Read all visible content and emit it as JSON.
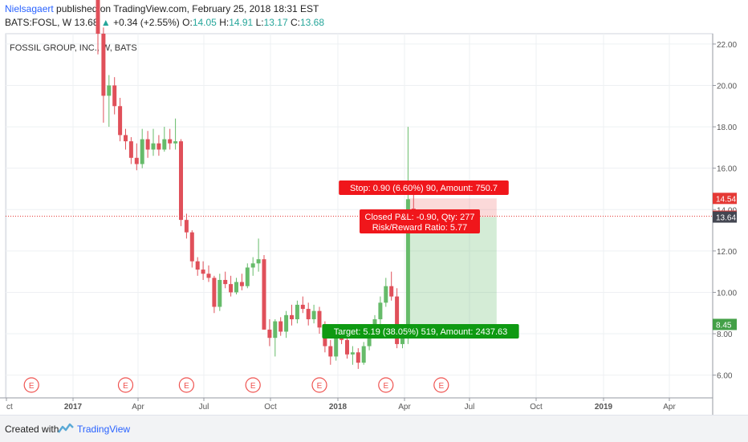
{
  "header": {
    "user": "Nielsagaert",
    "published": "published on TradingView.com, February 25, 2018 18:31 EST",
    "symbol": "BATS:FOSL, W",
    "last": "13.68",
    "change": "+0.34 (+2.55%)",
    "o_label": "O:",
    "o": "14.05",
    "h_label": "H:",
    "h": "14.91",
    "l_label": "L:",
    "l": "13.17",
    "c_label": "C:",
    "c": "13.68"
  },
  "footer": {
    "created": "Created with",
    "brand": "TradingView"
  },
  "chart_data": {
    "type": "candlestick",
    "title": "FOSSIL GROUP, INC., W, BATS",
    "ylim": [
      4.9,
      22.5
    ],
    "y_ticks": [
      "22.00",
      "20.00",
      "18.00",
      "16.00",
      "14.00",
      "12.00",
      "10.00",
      "8.00",
      "6.00"
    ],
    "y_tick_values": [
      22,
      20,
      18,
      16,
      14,
      12,
      10,
      8,
      6
    ],
    "x_ticks": [
      "ct",
      "2017",
      "Apr",
      "Jul",
      "Oct",
      "2018",
      "Apr",
      "Jul",
      "Oct",
      "2019",
      "Apr"
    ],
    "price_tags": [
      {
        "label": "14.54",
        "value": 14.54,
        "color": "#e53935"
      },
      {
        "label": "13.68",
        "value": 13.68,
        "color": "#e53935"
      },
      {
        "label": "13.64",
        "value": 13.64,
        "color": "#434651"
      },
      {
        "label": "8.45",
        "value": 8.45,
        "color": "#43a047"
      }
    ],
    "current_price": 13.68,
    "earnings_marker": "E",
    "earnings_weeks": [
      0,
      17,
      28,
      40,
      52,
      64,
      74
    ],
    "candles": [
      {
        "o": 26.5,
        "h": 27.5,
        "l": 21.5,
        "c": 22.5
      },
      {
        "o": 22.5,
        "h": 22.8,
        "l": 18.2,
        "c": 19.5
      },
      {
        "o": 19.5,
        "h": 20.5,
        "l": 18.0,
        "c": 20.0
      },
      {
        "o": 20.0,
        "h": 20.4,
        "l": 18.6,
        "c": 19.0
      },
      {
        "o": 19.0,
        "h": 19.4,
        "l": 17.3,
        "c": 17.6
      },
      {
        "o": 17.6,
        "h": 17.9,
        "l": 16.9,
        "c": 17.3
      },
      {
        "o": 17.3,
        "h": 17.5,
        "l": 16.2,
        "c": 16.5
      },
      {
        "o": 16.5,
        "h": 17.2,
        "l": 15.9,
        "c": 16.2
      },
      {
        "o": 16.2,
        "h": 17.9,
        "l": 16.0,
        "c": 17.4
      },
      {
        "o": 17.4,
        "h": 17.8,
        "l": 16.5,
        "c": 16.9
      },
      {
        "o": 16.9,
        "h": 17.9,
        "l": 16.6,
        "c": 17.2
      },
      {
        "o": 17.2,
        "h": 17.6,
        "l": 16.6,
        "c": 16.9
      },
      {
        "o": 16.9,
        "h": 18.0,
        "l": 16.8,
        "c": 17.4
      },
      {
        "o": 17.4,
        "h": 17.9,
        "l": 16.9,
        "c": 17.2
      },
      {
        "o": 17.2,
        "h": 18.4,
        "l": 16.9,
        "c": 17.3
      },
      {
        "o": 17.3,
        "h": 17.4,
        "l": 13.2,
        "c": 13.5
      },
      {
        "o": 13.5,
        "h": 13.8,
        "l": 12.6,
        "c": 12.9
      },
      {
        "o": 12.9,
        "h": 13.0,
        "l": 11.2,
        "c": 11.5
      },
      {
        "o": 11.5,
        "h": 11.7,
        "l": 10.8,
        "c": 11.1
      },
      {
        "o": 11.1,
        "h": 11.5,
        "l": 10.6,
        "c": 10.9
      },
      {
        "o": 10.9,
        "h": 11.3,
        "l": 10.5,
        "c": 10.7
      },
      {
        "o": 10.7,
        "h": 10.8,
        "l": 9.0,
        "c": 9.3
      },
      {
        "o": 9.3,
        "h": 10.9,
        "l": 9.1,
        "c": 10.6
      },
      {
        "o": 10.6,
        "h": 11.0,
        "l": 10.2,
        "c": 10.4
      },
      {
        "o": 10.4,
        "h": 10.8,
        "l": 9.8,
        "c": 10.0
      },
      {
        "o": 10.0,
        "h": 10.7,
        "l": 9.9,
        "c": 10.5
      },
      {
        "o": 10.5,
        "h": 10.9,
        "l": 10.1,
        "c": 10.3
      },
      {
        "o": 10.3,
        "h": 11.4,
        "l": 10.2,
        "c": 11.2
      },
      {
        "o": 11.2,
        "h": 11.7,
        "l": 10.8,
        "c": 11.4
      },
      {
        "o": 11.4,
        "h": 12.6,
        "l": 11.0,
        "c": 11.6
      },
      {
        "o": 11.6,
        "h": 11.8,
        "l": 8.2,
        "c": 8.2
      },
      {
        "o": 8.2,
        "h": 8.7,
        "l": 7.4,
        "c": 7.8
      },
      {
        "o": 7.8,
        "h": 8.7,
        "l": 6.9,
        "c": 8.6
      },
      {
        "o": 8.6,
        "h": 8.8,
        "l": 7.9,
        "c": 8.1
      },
      {
        "o": 8.1,
        "h": 9.1,
        "l": 7.8,
        "c": 8.9
      },
      {
        "o": 8.9,
        "h": 9.4,
        "l": 8.4,
        "c": 8.7
      },
      {
        "o": 8.7,
        "h": 9.6,
        "l": 8.5,
        "c": 9.4
      },
      {
        "o": 9.4,
        "h": 9.8,
        "l": 9.0,
        "c": 9.2
      },
      {
        "o": 9.2,
        "h": 9.5,
        "l": 8.4,
        "c": 8.7
      },
      {
        "o": 8.7,
        "h": 9.4,
        "l": 8.5,
        "c": 9.1
      },
      {
        "o": 9.1,
        "h": 9.3,
        "l": 8.0,
        "c": 8.3
      },
      {
        "o": 8.3,
        "h": 8.6,
        "l": 7.1,
        "c": 7.4
      },
      {
        "o": 7.4,
        "h": 7.7,
        "l": 6.5,
        "c": 6.9
      },
      {
        "o": 6.9,
        "h": 8.1,
        "l": 6.7,
        "c": 7.9
      },
      {
        "o": 7.9,
        "h": 8.3,
        "l": 7.5,
        "c": 7.7
      },
      {
        "o": 7.7,
        "h": 8.0,
        "l": 6.8,
        "c": 7.0
      },
      {
        "o": 7.0,
        "h": 7.4,
        "l": 6.5,
        "c": 7.1
      },
      {
        "o": 7.1,
        "h": 7.3,
        "l": 6.3,
        "c": 6.6
      },
      {
        "o": 6.6,
        "h": 7.6,
        "l": 6.5,
        "c": 7.4
      },
      {
        "o": 7.4,
        "h": 8.2,
        "l": 7.2,
        "c": 8.0
      },
      {
        "o": 8.0,
        "h": 8.9,
        "l": 7.8,
        "c": 8.7
      },
      {
        "o": 8.7,
        "h": 9.8,
        "l": 8.4,
        "c": 9.5
      },
      {
        "o": 9.5,
        "h": 10.7,
        "l": 9.3,
        "c": 10.3
      },
      {
        "o": 10.3,
        "h": 11.0,
        "l": 9.6,
        "c": 9.8
      },
      {
        "o": 9.8,
        "h": 10.2,
        "l": 7.3,
        "c": 7.5
      },
      {
        "o": 7.5,
        "h": 8.2,
        "l": 7.3,
        "c": 8.0
      },
      {
        "o": 7.8,
        "h": 18.0,
        "l": 7.5,
        "c": 14.5
      },
      {
        "o": 14.05,
        "h": 14.91,
        "l": 13.17,
        "c": 13.68
      }
    ],
    "position": {
      "entry": 13.64,
      "stop": 14.54,
      "target": 8.45,
      "start_week": 56,
      "end_week": 72,
      "stop_label": "Stop: 0.90 (6.60%) 90, Amount: 750.7",
      "pnl_label": "Closed P&L: -0.90, Qty: 277",
      "rr_label": "Risk/Reward Ratio: 5.77",
      "target_label": "Target: 5.19 (38.05%) 519, Amount: 2437.63"
    }
  }
}
